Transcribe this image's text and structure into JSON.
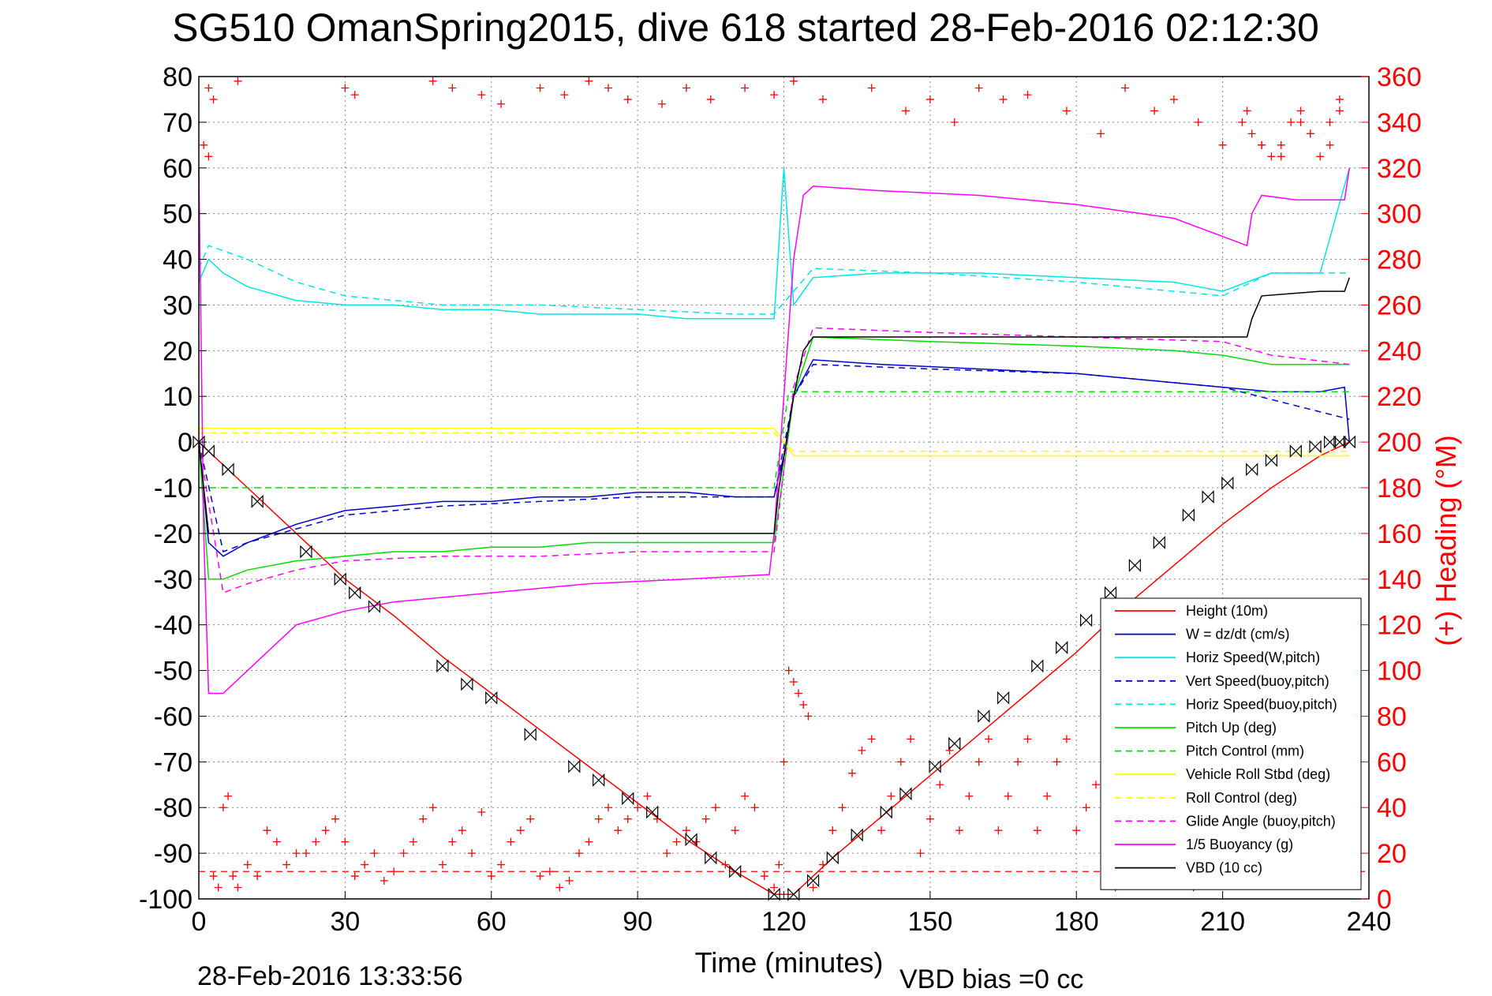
{
  "chart_data": {
    "type": "line",
    "title": "SG510 OmanSpring2015, dive 618 started 28-Feb-2016 02:12:30",
    "xlabel": "Time (minutes)",
    "ylabel": "",
    "ylabel_right": "(+) Heading (°M)",
    "footer_left": "28-Feb-2016 13:33:56",
    "footer_right": "VBD bias =0 cc",
    "xlim": [
      0,
      240
    ],
    "ylim": [
      -100,
      80
    ],
    "ylim_right": [
      0,
      360
    ],
    "x_ticks": [
      0,
      30,
      60,
      90,
      120,
      150,
      180,
      210,
      240
    ],
    "y_ticks": [
      80,
      70,
      60,
      50,
      40,
      30,
      20,
      10,
      0,
      -10,
      -20,
      -30,
      -40,
      -50,
      -60,
      -70,
      -80,
      -90,
      -100
    ],
    "y_ticks_right": [
      360,
      340,
      320,
      300,
      280,
      260,
      240,
      220,
      200,
      180,
      160,
      140,
      120,
      100,
      80,
      60,
      40,
      20,
      0
    ],
    "grid": true,
    "legend_position": "bottom-right",
    "colors": {
      "height": "#ff0000",
      "w": "#0000cc",
      "horiz": "#00e5e5",
      "pitch": "#00dd00",
      "roll": "#ffff00",
      "glide": "#ff00ff",
      "buoyancy": "#ff00ff",
      "vbd": "#000000",
      "heading": "#ff0000"
    },
    "series": [
      {
        "name": "Height (10m)",
        "color": "#ff0000",
        "dash": "solid",
        "x": [
          0,
          10,
          20,
          30,
          40,
          50,
          60,
          70,
          80,
          90,
          100,
          110,
          118,
          122,
          126,
          130,
          140,
          150,
          160,
          170,
          180,
          190,
          200,
          210,
          220,
          230,
          236
        ],
        "y": [
          0,
          -10,
          -20,
          -30,
          -38,
          -47,
          -55,
          -63,
          -71,
          -79,
          -87,
          -94,
          -99,
          -99,
          -95,
          -91,
          -82,
          -73,
          -64,
          -55,
          -46,
          -36,
          -27,
          -18,
          -10,
          -3,
          0
        ]
      },
      {
        "name": "W = dz/dt (cm/s)",
        "color": "#0000cc",
        "dash": "solid",
        "x": [
          0,
          2,
          5,
          10,
          20,
          30,
          40,
          50,
          60,
          70,
          80,
          90,
          100,
          110,
          118,
          120,
          122,
          126,
          140,
          160,
          180,
          200,
          220,
          230,
          235,
          236
        ],
        "y": [
          0,
          -22,
          -25,
          -22,
          -18,
          -15,
          -14,
          -13,
          -13,
          -12,
          -12,
          -11,
          -11,
          -12,
          -12,
          -3,
          10,
          18,
          17,
          16,
          15,
          13,
          11,
          11,
          12,
          0
        ]
      },
      {
        "name": "Horiz Speed(W,pitch)",
        "color": "#00e5e5",
        "dash": "solid",
        "x": [
          0,
          2,
          5,
          10,
          20,
          30,
          40,
          50,
          60,
          70,
          80,
          90,
          100,
          110,
          118,
          120,
          122,
          126,
          140,
          160,
          180,
          200,
          210,
          220,
          230,
          236
        ],
        "y": [
          35,
          40,
          37,
          34,
          31,
          30,
          30,
          29,
          29,
          28,
          28,
          28,
          27,
          27,
          27,
          60,
          30,
          36,
          37,
          37,
          36,
          35,
          33,
          37,
          37,
          60
        ]
      },
      {
        "name": "Vert Speed(buoy,pitch)",
        "color": "#0000cc",
        "dash": "dashed",
        "x": [
          0,
          5,
          10,
          20,
          30,
          50,
          70,
          90,
          110,
          118,
          122,
          126,
          150,
          180,
          210,
          236
        ],
        "y": [
          0,
          -24,
          -22,
          -19,
          -16,
          -14,
          -13,
          -12,
          -12,
          -12,
          10,
          17,
          16,
          15,
          12,
          5
        ]
      },
      {
        "name": "Horiz Speed(buoy,pitch)",
        "color": "#00e5e5",
        "dash": "dashed",
        "x": [
          0,
          2,
          10,
          20,
          30,
          50,
          70,
          90,
          110,
          118,
          122,
          126,
          150,
          180,
          200,
          210,
          220,
          236
        ],
        "y": [
          38,
          43,
          40,
          35,
          32,
          30,
          30,
          29,
          28,
          28,
          33,
          38,
          37,
          35,
          33,
          32,
          37,
          37
        ]
      },
      {
        "name": "Pitch Up (deg)",
        "color": "#00dd00",
        "dash": "solid",
        "x": [
          0,
          2,
          5,
          10,
          20,
          30,
          40,
          50,
          60,
          70,
          80,
          90,
          100,
          110,
          118,
          122,
          126,
          150,
          180,
          200,
          210,
          220,
          236
        ],
        "y": [
          0,
          -30,
          -30,
          -28,
          -26,
          -25,
          -24,
          -24,
          -23,
          -23,
          -22,
          -22,
          -22,
          -22,
          -22,
          10,
          23,
          22,
          21,
          20,
          19,
          17,
          17
        ]
      },
      {
        "name": "Pitch Control (mm)",
        "color": "#00dd00",
        "dash": "dashed",
        "x": [
          0,
          3,
          118,
          121,
          236
        ],
        "y": [
          -10,
          -10,
          -10,
          11,
          11
        ]
      },
      {
        "name": "Vehicle Roll Stbd (deg)",
        "color": "#ffff00",
        "dash": "solid",
        "x": [
          0,
          5,
          118,
          122,
          236
        ],
        "y": [
          3,
          3,
          3,
          -3,
          -3
        ]
      },
      {
        "name": "Roll Control (deg)",
        "color": "#ffff00",
        "dash": "dashed",
        "x": [
          0,
          5,
          118,
          122,
          236
        ],
        "y": [
          2,
          2,
          2,
          -2,
          -2
        ]
      },
      {
        "name": "Glide Angle (buoy,pitch)",
        "color": "#ff00ff",
        "dash": "dashed",
        "x": [
          0,
          5,
          10,
          20,
          30,
          50,
          70,
          90,
          110,
          118,
          122,
          126,
          150,
          180,
          210,
          220,
          236
        ],
        "y": [
          0,
          -33,
          -31,
          -28,
          -26,
          -25,
          -25,
          -24,
          -24,
          -24,
          12,
          25,
          24,
          23,
          22,
          19,
          17
        ]
      },
      {
        "name": "1/5 Buoyancy (g)",
        "color": "#ff00ff",
        "dash": "solid",
        "x": [
          0,
          1,
          2,
          5,
          10,
          15,
          20,
          30,
          40,
          60,
          80,
          100,
          117,
          118,
          120,
          122,
          124,
          126,
          140,
          160,
          180,
          200,
          210,
          215,
          216,
          218,
          225,
          235,
          236
        ],
        "y": [
          60,
          -20,
          -55,
          -55,
          -50,
          -45,
          -40,
          -37,
          -35,
          -33,
          -31,
          -30,
          -29,
          -20,
          10,
          40,
          54,
          56,
          55,
          54,
          52,
          49,
          45,
          43,
          50,
          54,
          53,
          53,
          60
        ]
      },
      {
        "name": "VBD (10 cc)",
        "color": "#000000",
        "dash": "solid",
        "x": [
          0,
          1,
          2,
          118,
          119,
          122,
          124,
          126,
          215,
          216,
          218,
          230,
          235,
          236
        ],
        "y": [
          0,
          -10,
          -20,
          -20,
          -10,
          10,
          20,
          23,
          23,
          27,
          32,
          33,
          33,
          36
        ]
      }
    ],
    "heading_points": {
      "name": "(+) Heading",
      "axis": "right",
      "x": [
        1,
        2,
        3,
        4,
        5,
        6,
        7,
        8,
        10,
        12,
        14,
        16,
        18,
        20,
        22,
        24,
        26,
        28,
        30,
        32,
        34,
        36,
        38,
        40,
        42,
        44,
        46,
        48,
        50,
        52,
        54,
        56,
        58,
        60,
        62,
        64,
        66,
        68,
        70,
        72,
        74,
        76,
        78,
        80,
        82,
        84,
        86,
        88,
        90,
        92,
        94,
        96,
        98,
        100,
        102,
        104,
        106,
        108,
        110,
        112,
        114,
        116,
        118,
        119,
        120,
        121,
        122,
        123,
        124,
        125,
        126,
        128,
        130,
        132,
        134,
        136,
        138,
        140,
        142,
        144,
        146,
        148,
        150,
        152,
        154,
        156,
        158,
        160,
        162,
        164,
        166,
        168,
        170,
        172,
        174,
        176,
        178,
        180,
        182,
        184,
        186,
        188,
        190,
        192,
        194,
        196,
        198,
        200,
        202,
        204,
        206,
        208,
        210,
        212,
        214,
        216,
        218,
        220,
        222,
        224,
        226,
        228,
        230,
        232,
        234
      ],
      "y": [
        330,
        325,
        10,
        5,
        40,
        45,
        10,
        5,
        15,
        10,
        30,
        25,
        15,
        20,
        20,
        25,
        30,
        35,
        25,
        10,
        15,
        20,
        8,
        12,
        20,
        25,
        35,
        40,
        15,
        25,
        30,
        20,
        38,
        10,
        15,
        25,
        30,
        35,
        10,
        12,
        5,
        8,
        20,
        25,
        35,
        40,
        30,
        35,
        40,
        45,
        35,
        20,
        25,
        30,
        25,
        35,
        40,
        15,
        30,
        45,
        40,
        10,
        5,
        15,
        60,
        100,
        95,
        90,
        85,
        80,
        5,
        15,
        30,
        40,
        55,
        65,
        70,
        30,
        45,
        60,
        70,
        20,
        35,
        50,
        65,
        30,
        45,
        60,
        70,
        30,
        45,
        60,
        70,
        30,
        45,
        60,
        70,
        30,
        40,
        50,
        55,
        5,
        20,
        35,
        45,
        10,
        25,
        40,
        50,
        5,
        20,
        35,
        15,
        30,
        340,
        335,
        330,
        325,
        330,
        340,
        345,
        335,
        325,
        340,
        350
      ]
    },
    "heading_top_points": {
      "x": [
        2,
        3,
        8,
        30,
        32,
        48,
        52,
        58,
        62,
        70,
        75,
        80,
        84,
        88,
        95,
        100,
        105,
        112,
        118,
        122,
        128,
        138,
        145,
        150,
        155,
        160,
        165,
        170,
        178,
        185,
        190,
        196,
        200,
        205,
        210,
        215,
        218,
        222,
        226,
        228,
        232,
        234
      ],
      "y": [
        355,
        350,
        358,
        355,
        352,
        358,
        355,
        352,
        348,
        355,
        352,
        358,
        355,
        350,
        348,
        355,
        350,
        355,
        352,
        358,
        350,
        355,
        345,
        350,
        340,
        355,
        350,
        352,
        345,
        335,
        355,
        345,
        350,
        340,
        330,
        345,
        330,
        325,
        340,
        335,
        330,
        345
      ]
    },
    "dashed_reference_line": {
      "y": -94,
      "color": "#ff0000"
    },
    "height_markers": {
      "x": [
        0,
        2,
        6,
        12,
        22,
        29,
        32,
        36,
        50,
        55,
        60,
        68,
        77,
        82,
        88,
        93,
        101,
        105,
        110,
        118,
        122,
        126,
        130,
        135,
        141,
        145,
        151,
        155,
        161,
        165,
        172,
        177,
        182,
        187,
        192,
        197,
        203,
        207,
        211,
        216,
        220,
        225,
        229,
        232,
        234,
        236
      ],
      "y": [
        0,
        -2,
        -6,
        -13,
        -24,
        -30,
        -33,
        -36,
        -49,
        -53,
        -56,
        -64,
        -71,
        -74,
        -78,
        -81,
        -87,
        -91,
        -94,
        -99,
        -99,
        -96,
        -91,
        -86,
        -81,
        -77,
        -71,
        -66,
        -60,
        -56,
        -49,
        -45,
        -39,
        -33,
        -27,
        -22,
        -16,
        -12,
        -9,
        -6,
        -4,
        -2,
        -1,
        0,
        0,
        0
      ]
    }
  }
}
